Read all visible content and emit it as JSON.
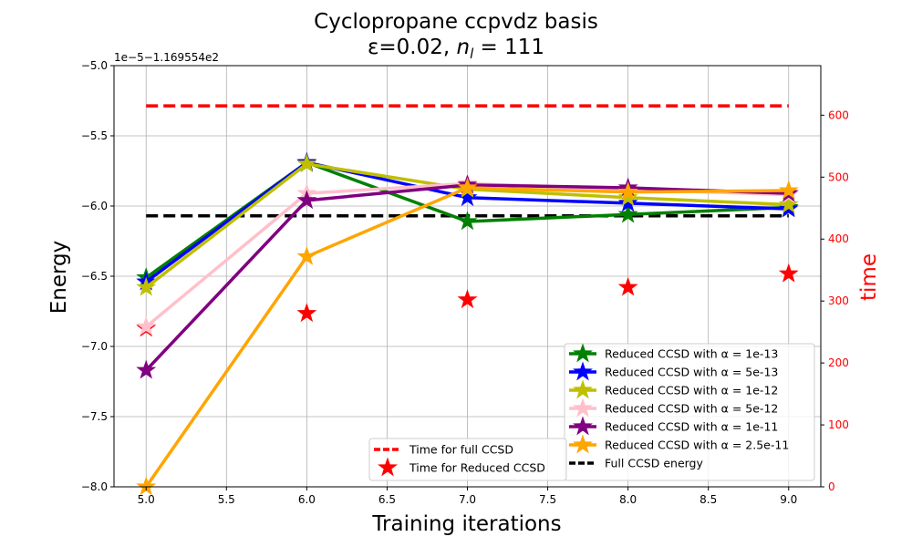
{
  "chart_data": {
    "type": "line",
    "title_line1": "Cyclopropane ccpvdz basis",
    "title_line2_prefix": "ε=0.02, ",
    "title_line2_var": "n",
    "title_line2_sub": "l",
    "title_line2_suffix": " = 111",
    "xlabel": "Training iterations",
    "ylabel": "Energy",
    "y2label": "time",
    "offset_label": "1e−5−1.169554e2",
    "xlim": [
      4.8,
      9.2
    ],
    "ylim": [
      -8.0,
      -5.0
    ],
    "y2lim": [
      0,
      680
    ],
    "x_ticks": [
      5.0,
      5.5,
      6.0,
      6.5,
      7.0,
      7.5,
      8.0,
      8.5,
      9.0
    ],
    "x_tick_labels": [
      "5.0",
      "5.5",
      "6.0",
      "6.5",
      "7.0",
      "7.5",
      "8.0",
      "8.5",
      "9.0"
    ],
    "y_ticks": [
      -5.0,
      -5.5,
      -6.0,
      -6.5,
      -7.0,
      -7.5,
      -8.0
    ],
    "y_tick_labels": [
      "−5.0",
      "−5.5",
      "−6.0",
      "−6.5",
      "−7.0",
      "−7.5",
      "−8.0"
    ],
    "y2_ticks": [
      0,
      100,
      200,
      300,
      400,
      500,
      600
    ],
    "y2_tick_labels": [
      "0",
      "100",
      "200",
      "300",
      "400",
      "500",
      "600"
    ],
    "grid": true,
    "x": [
      5,
      6,
      7,
      8,
      9
    ],
    "series": [
      {
        "name": "Reduced CCSD with α = 1e-13",
        "color": "#008000",
        "values": [
          -6.51,
          -5.69,
          -6.11,
          -6.06,
          -6.01
        ]
      },
      {
        "name": "Reduced CCSD with α = 5e-13",
        "color": "#0000ff",
        "values": [
          -6.54,
          -5.69,
          -5.94,
          -5.98,
          -6.02
        ]
      },
      {
        "name": "Reduced CCSD with α = 1e-12",
        "color": "#bfbf00",
        "values": [
          -6.58,
          -5.7,
          -5.88,
          -5.94,
          -5.99
        ]
      },
      {
        "name": "Reduced CCSD with α = 5e-12",
        "color": "#ffc0cb",
        "values": [
          -6.86,
          -5.91,
          -5.84,
          -5.88,
          -5.92
        ]
      },
      {
        "name": "Reduced CCSD with α = 1e-11",
        "color": "#800080",
        "values": [
          -7.17,
          -5.96,
          -5.85,
          -5.87,
          -5.91
        ]
      },
      {
        "name": "Reduced CCSD with α = 2.5e-11",
        "color": "#ffa500",
        "values": [
          -8.0,
          -6.36,
          -5.87,
          -5.9,
          -5.89
        ]
      }
    ],
    "full_ccsd_energy": {
      "name": "Full CCSD energy",
      "color": "#000000",
      "value": -6.07,
      "x_range": [
        5,
        9
      ]
    },
    "time_full_ccsd": {
      "name": "Time for full CCSD",
      "color": "#ff0000",
      "value": 615,
      "x_range": [
        5,
        9
      ]
    },
    "time_reduced_ccsd": {
      "name": "Time for Reduced CCSD",
      "color": "#ff0000",
      "values": [
        256,
        280,
        302,
        322,
        344
      ]
    },
    "legend_main_position": "lower-right",
    "legend_time_position": "lower-center"
  }
}
